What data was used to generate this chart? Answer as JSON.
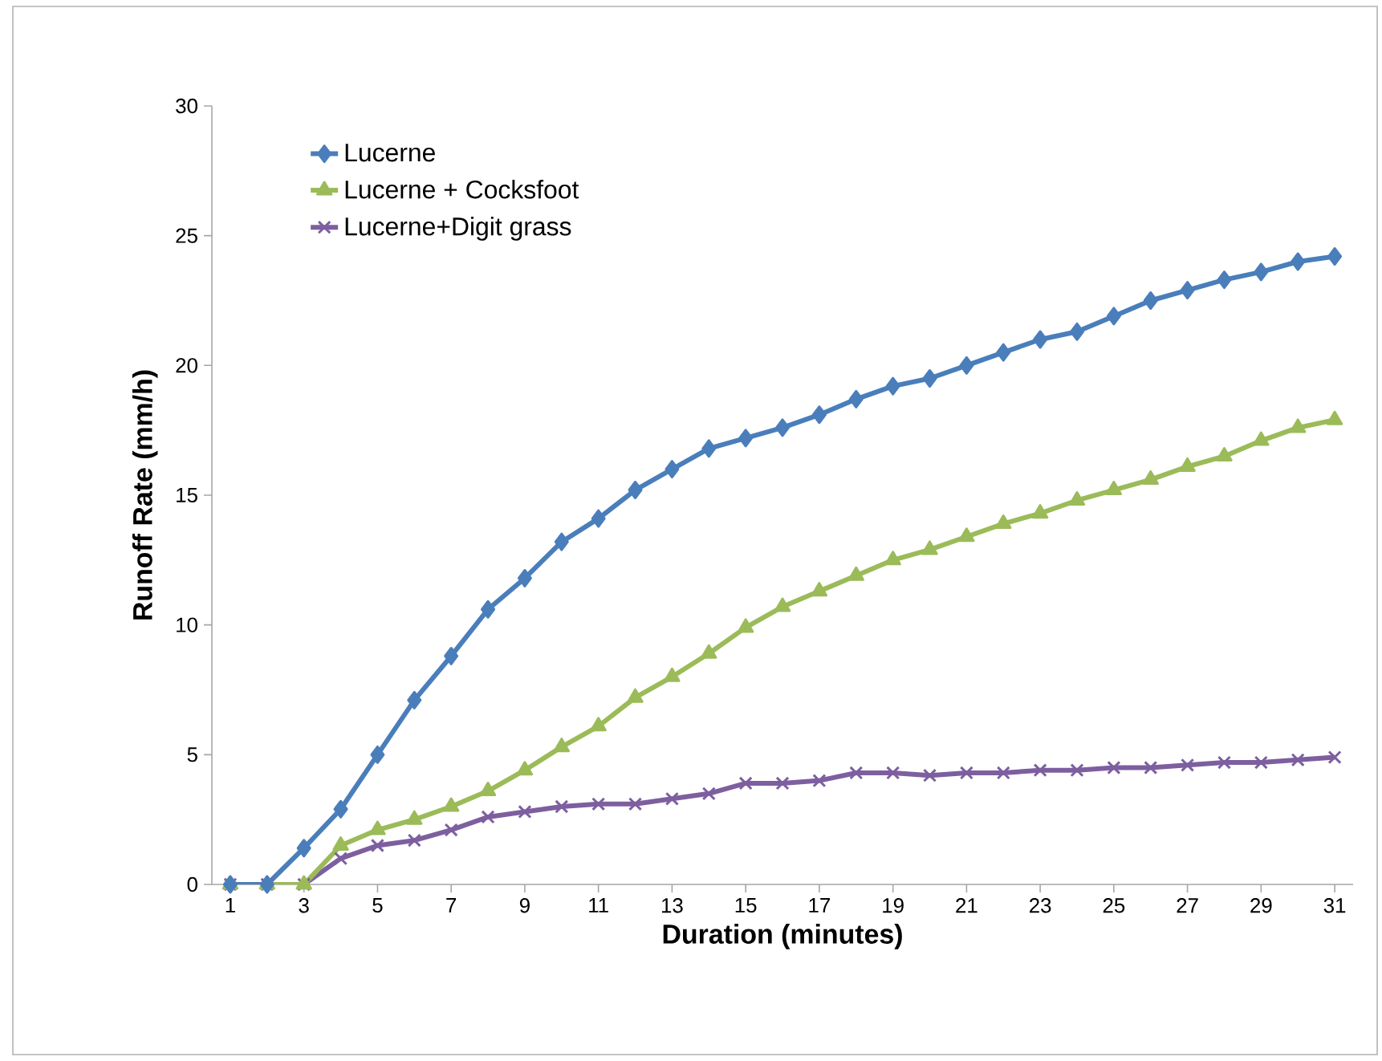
{
  "chart_data": {
    "type": "line",
    "xlabel": "Duration (minutes)",
    "ylabel": "Runoff Rate (mm/h)",
    "x": [
      1,
      2,
      3,
      4,
      5,
      6,
      7,
      8,
      9,
      10,
      11,
      12,
      13,
      14,
      15,
      16,
      17,
      18,
      19,
      20,
      21,
      22,
      23,
      24,
      25,
      26,
      27,
      28,
      29,
      30,
      31
    ],
    "xlim": [
      0.5,
      31.5
    ],
    "xticks": [
      1,
      3,
      5,
      7,
      9,
      11,
      13,
      15,
      17,
      19,
      21,
      23,
      25,
      27,
      29,
      31
    ],
    "ylim": [
      0,
      30
    ],
    "yticks": [
      0,
      5,
      10,
      15,
      20,
      25,
      30
    ],
    "grid": false,
    "legend": "top left",
    "line_style": "solid",
    "series": [
      {
        "name": "Lucerne",
        "color": "#4a7ebb",
        "marker": "diamond",
        "values": [
          0,
          0,
          1.4,
          2.9,
          5.0,
          7.1,
          8.8,
          10.6,
          11.8,
          13.2,
          14.1,
          15.2,
          16.0,
          16.8,
          17.2,
          17.6,
          18.1,
          18.7,
          19.2,
          19.5,
          20.0,
          20.5,
          21.0,
          21.3,
          21.9,
          22.5,
          22.9,
          23.3,
          23.6,
          24.0,
          24.2
        ]
      },
      {
        "name": "Lucerne + Cocksfoot",
        "color": "#9bbb59",
        "marker": "triangle",
        "values": [
          0,
          0,
          0,
          1.5,
          2.1,
          2.5,
          3.0,
          3.6,
          4.4,
          5.3,
          6.1,
          7.2,
          8.0,
          8.9,
          9.9,
          10.7,
          11.3,
          11.9,
          12.5,
          12.9,
          13.4,
          13.9,
          14.3,
          14.8,
          15.2,
          15.6,
          16.1,
          16.5,
          17.1,
          17.6,
          17.9
        ]
      },
      {
        "name": "Lucerne+Digit grass",
        "color": "#7d5fa0",
        "marker": "cross",
        "values": [
          0,
          0,
          0,
          1.0,
          1.5,
          1.7,
          2.1,
          2.6,
          2.8,
          3.0,
          3.1,
          3.1,
          3.3,
          3.5,
          3.9,
          3.9,
          4.0,
          4.3,
          4.3,
          4.2,
          4.3,
          4.3,
          4.4,
          4.4,
          4.5,
          4.5,
          4.6,
          4.7,
          4.7,
          4.8,
          4.9
        ]
      }
    ]
  }
}
